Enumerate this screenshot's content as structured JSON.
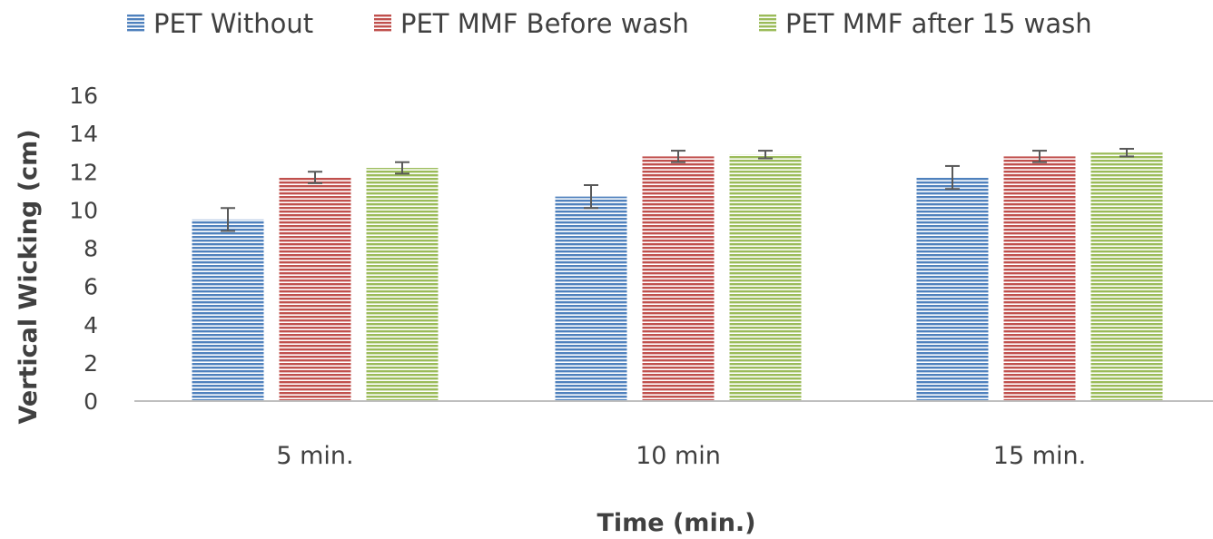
{
  "chart_data": {
    "type": "bar",
    "title": "",
    "xlabel": "Time (min.)",
    "ylabel": "Vertical Wicking (cm)",
    "categories": [
      "5 min.",
      "10 min",
      "15 min."
    ],
    "ylim": [
      0,
      16
    ],
    "yticks": [
      0,
      2,
      4,
      6,
      8,
      10,
      12,
      14,
      16
    ],
    "grid": false,
    "legend_position": "top",
    "bar_pattern": "horizontal stripes",
    "series": [
      {
        "name": "PET Without",
        "color": "#4f81bd",
        "values": [
          9.5,
          10.7,
          11.7
        ],
        "errors": [
          0.6,
          0.6,
          0.6
        ]
      },
      {
        "name": "PET MMF Before wash",
        "color": "#c0504d",
        "values": [
          11.7,
          12.8,
          12.8
        ],
        "errors": [
          0.3,
          0.3,
          0.3
        ]
      },
      {
        "name": "PET MMF after 15 wash",
        "color": "#9bbb59",
        "values": [
          12.2,
          12.9,
          13.0
        ],
        "errors": [
          0.3,
          0.2,
          0.2
        ]
      }
    ]
  }
}
